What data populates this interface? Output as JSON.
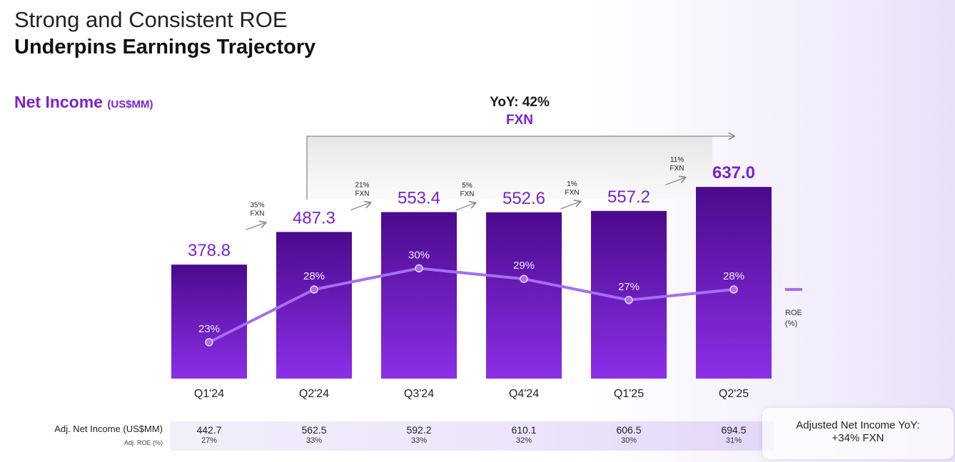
{
  "header": {
    "title_line1": "Strong and Consistent ROE",
    "title_line2": "Underpins Earnings Trajectory",
    "subtitle": "Net Income",
    "subtitle_unit": "(US$MM)"
  },
  "chart_data": {
    "type": "bar",
    "title": "Net Income (US$MM)",
    "categories": [
      "Q1'24",
      "Q2'24",
      "Q3'24",
      "Q4'24",
      "Q1'25",
      "Q2'25"
    ],
    "series": [
      {
        "name": "Net Income (US$MM)",
        "type": "bar",
        "values": [
          378.8,
          487.3,
          553.4,
          552.6,
          557.2,
          637.0
        ],
        "labels": [
          "378.8",
          "487.3",
          "553.4",
          "552.6",
          "557.2",
          "637.0"
        ]
      },
      {
        "name": "ROE (%)",
        "type": "line",
        "values": [
          23,
          28,
          30,
          29,
          27,
          28
        ],
        "labels": [
          "23%",
          "28%",
          "30%",
          "29%",
          "27%",
          "28%"
        ]
      }
    ],
    "growth_annotations": [
      {
        "pct": "35%",
        "basis": "FXN"
      },
      {
        "pct": "21%",
        "basis": "FXN"
      },
      {
        "pct": "5%",
        "basis": "FXN"
      },
      {
        "pct": "1%",
        "basis": "FXN"
      },
      {
        "pct": "11%",
        "basis": "FXN"
      }
    ],
    "yoy": {
      "label": "YoY: 42%",
      "basis": "FXN"
    },
    "legend": {
      "line_label_1": "ROE",
      "line_label_2": "(%)"
    },
    "colors": {
      "bar_top": "#4b0a8c",
      "bar_bottom": "#8b2fe8",
      "line": "#a66ef0",
      "value_text": "#7b22d0",
      "bracket": "#e9e9e9",
      "bracket_stroke": "#8a8a8a"
    }
  },
  "table": {
    "row1_label": "Adj. Net Income (US$MM)",
    "row2_label": "Adj. ROE (%)",
    "adj_net_income": [
      "442.7",
      "562.5",
      "592.2",
      "610.1",
      "606.5",
      "694.5"
    ],
    "adj_roe": [
      "27%",
      "33%",
      "33%",
      "32%",
      "30%",
      "31%"
    ]
  },
  "callout": {
    "line1": "Adjusted Net Income YoY:",
    "line2": "+34% FXN"
  }
}
